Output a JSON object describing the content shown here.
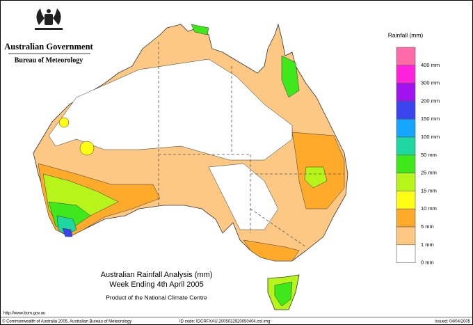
{
  "header": {
    "title": "Australian Government",
    "subtitle": "Bureau of Meteorology"
  },
  "legend": {
    "title": "Rainfall (mm)",
    "items": [
      {
        "label": "400 mm",
        "color": "#ff6aa8"
      },
      {
        "label": "300 mm",
        "color": "#ff22dd"
      },
      {
        "label": "200 mm",
        "color": "#a012f0"
      },
      {
        "label": "150 mm",
        "color": "#3a44ee"
      },
      {
        "label": "100 mm",
        "color": "#14a6ff"
      },
      {
        "label": "50 mm",
        "color": "#1ed8a0"
      },
      {
        "label": "25 mm",
        "color": "#3ee81a"
      },
      {
        "label": "15 mm",
        "color": "#b6f41a"
      },
      {
        "label": "10 mm",
        "color": "#ffff14"
      },
      {
        "label": "5 mm",
        "color": "#ffaa2a"
      },
      {
        "label": "1 mm",
        "color": "#fcc884"
      },
      {
        "label": "0 mm",
        "color": "#ffffff"
      }
    ]
  },
  "caption": {
    "title": "Australian Rainfall Analysis (mm)",
    "subtitle": "Week Ending 4th April 2005",
    "credit": "Product of the National Climate Centre"
  },
  "footer": {
    "url": "http://www.bom.gov.au",
    "copyright": "© Commonwealth of Australia 2005, Australian Bureau of Meteorology",
    "id_code": "ID code: IDCRFXAU.2005032920050404.col.img",
    "issued": "Issued: 04/04/2005"
  }
}
